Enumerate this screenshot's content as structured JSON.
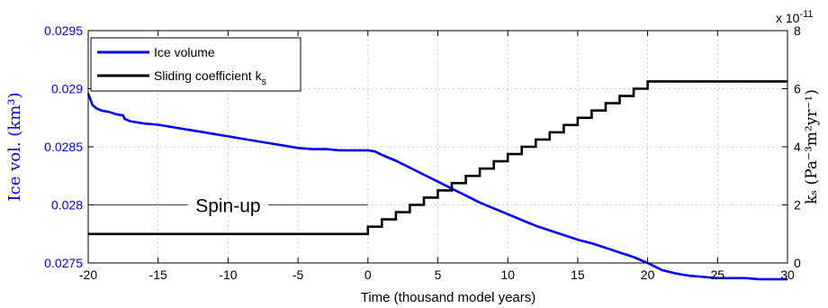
{
  "chart_data": {
    "type": "line",
    "xlabel": "Time (thousand model years)",
    "ylabel_left": "Ice vol. (km³)",
    "ylabel_right": "kₛ (Pa⁻³m²yr⁻¹)",
    "right_axis_multiplier": "x 10",
    "right_axis_exponent": "-11",
    "xlim": [
      -20,
      30
    ],
    "ylim_left": [
      0.0275,
      0.0295
    ],
    "ylim_right": [
      0,
      8
    ],
    "x_ticks": [
      "-20",
      "-15",
      "-10",
      "-5",
      "0",
      "5",
      "10",
      "15",
      "20",
      "25",
      "30"
    ],
    "y_left_ticks": [
      "0.0275",
      "0.028",
      "0.0285",
      "0.029",
      "0.0295"
    ],
    "y_right_ticks": [
      "0",
      "2",
      "4",
      "6",
      "8"
    ],
    "grid": true,
    "legend_position": "top-left",
    "annotation": {
      "text": "Spin-up",
      "x_start": -20,
      "x_end": 0,
      "y_left": 0.028
    },
    "colors": {
      "ice_volume": "#0000ff",
      "sliding": "#000000",
      "left_axis": "#0000ff",
      "grid": "#bfbfbf"
    },
    "series": [
      {
        "name": "Ice volume",
        "axis": "left",
        "x": [
          -20,
          -19.7,
          -19.4,
          -19,
          -18.5,
          -18,
          -17.5,
          -17.4,
          -17,
          -16,
          -15,
          -14,
          -13,
          -12,
          -11,
          -10,
          -9,
          -8,
          -7,
          -6,
          -5,
          -4,
          -3,
          -2,
          -1,
          0,
          0.5,
          1,
          2,
          3,
          4,
          5,
          6,
          7,
          8,
          9,
          10,
          11,
          12,
          13,
          14,
          15,
          16,
          17,
          18,
          19,
          20,
          21,
          22,
          23,
          24,
          25,
          26,
          27,
          28,
          29,
          30
        ],
        "y": [
          0.02896,
          0.02886,
          0.02883,
          0.02881,
          0.0288,
          0.02878,
          0.02877,
          0.02874,
          0.02872,
          0.0287,
          0.02869,
          0.02867,
          0.02865,
          0.02863,
          0.02861,
          0.02859,
          0.02857,
          0.02855,
          0.02853,
          0.02851,
          0.02849,
          0.02848,
          0.02848,
          0.02847,
          0.02847,
          0.02847,
          0.02846,
          0.02843,
          0.02838,
          0.02832,
          0.02826,
          0.0282,
          0.02814,
          0.02808,
          0.02802,
          0.02797,
          0.02792,
          0.02787,
          0.02782,
          0.02778,
          0.02774,
          0.0277,
          0.02767,
          0.02763,
          0.02759,
          0.02755,
          0.0275,
          0.02744,
          0.02741,
          0.02739,
          0.02738,
          0.02737,
          0.02737,
          0.02737,
          0.02736,
          0.02736,
          0.02736
        ]
      },
      {
        "name": "Sliding coefficient k",
        "name_subscript": "s",
        "axis": "right",
        "steps_x": [
          -20,
          0,
          1,
          2,
          3,
          4,
          5,
          6,
          7,
          8,
          9,
          10,
          11,
          12,
          13,
          14,
          15,
          16,
          17,
          18,
          19,
          20,
          30
        ],
        "steps_y": [
          1,
          1.25,
          1.5,
          1.75,
          2,
          2.25,
          2.5,
          2.75,
          3,
          3.25,
          3.5,
          3.75,
          4,
          4.25,
          4.5,
          4.75,
          5,
          5.25,
          5.5,
          5.75,
          6,
          6.25,
          6.25
        ]
      }
    ]
  }
}
